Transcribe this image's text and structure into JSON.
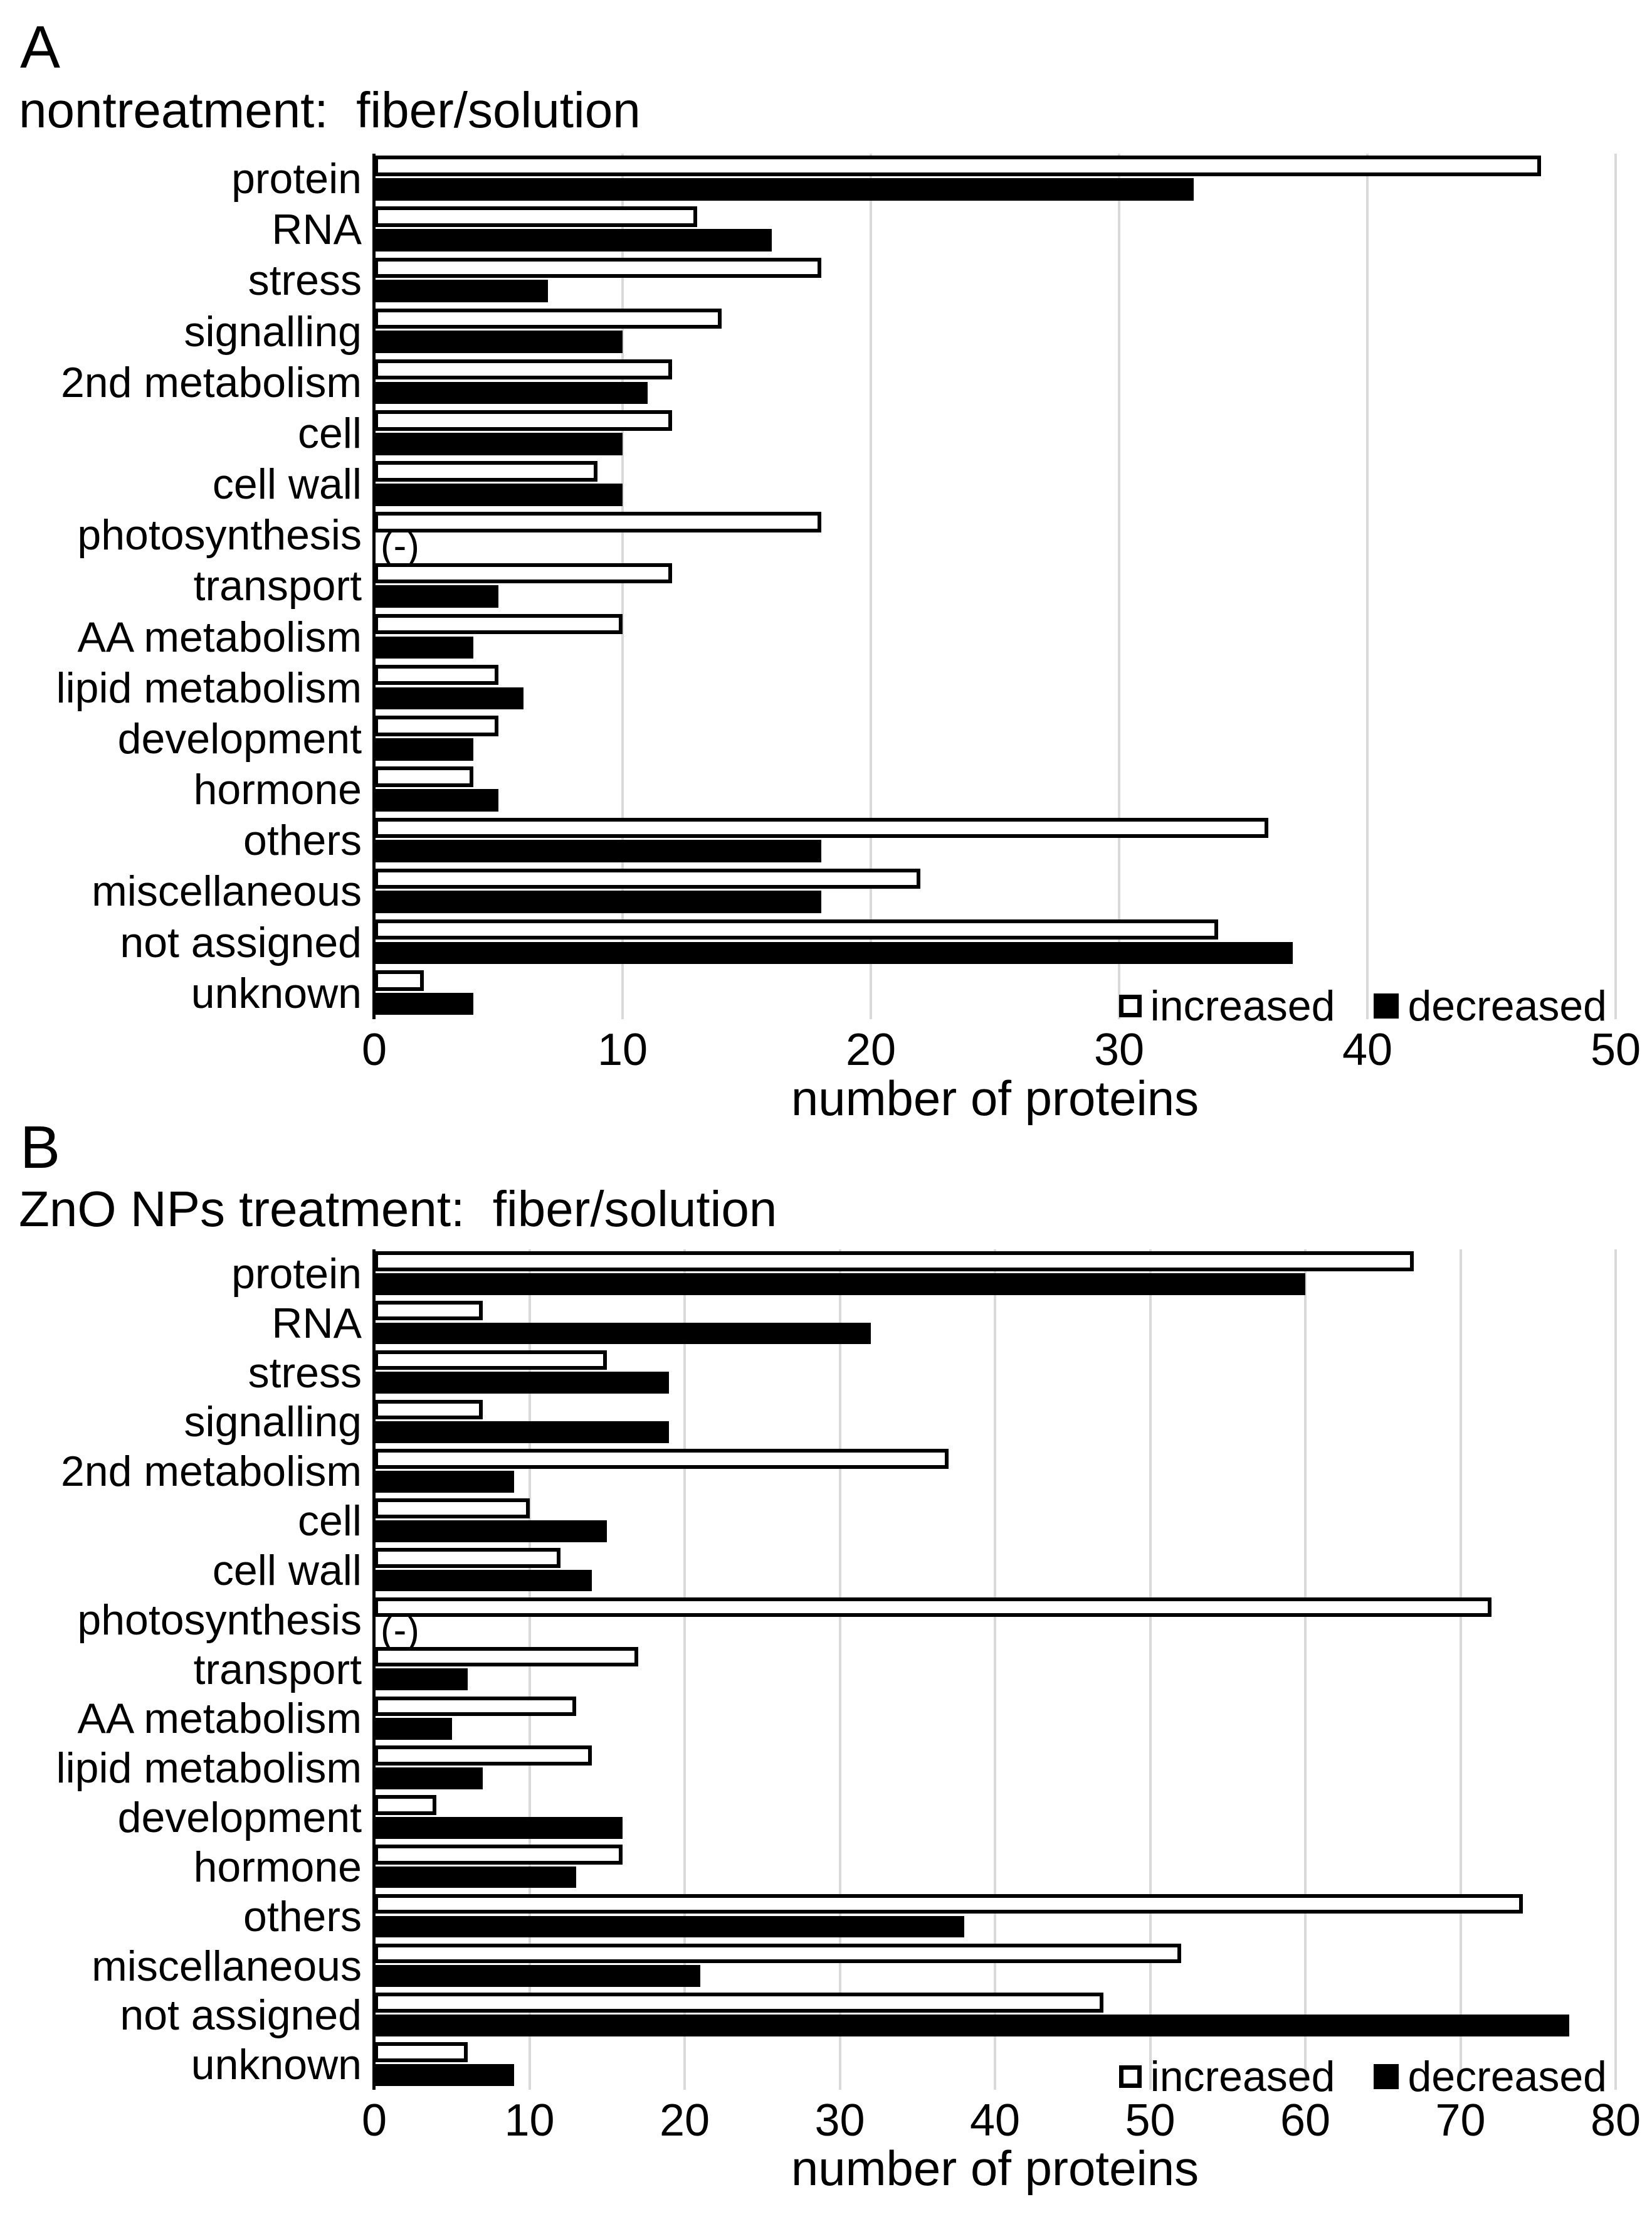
{
  "chart_data": [
    {
      "type": "bar",
      "orientation": "horizontal",
      "panel": "A",
      "title": "nontreatment:  fiber/solution",
      "xlabel": "number of proteins",
      "xlim": [
        0,
        50
      ],
      "xticks": [
        0,
        10,
        20,
        30,
        40,
        50
      ],
      "grid": true,
      "legend_position": "bottom-right-inside",
      "bar_colors": {
        "increased": "#ffffff",
        "decreased": "#000000"
      },
      "categories": [
        "protein",
        "RNA",
        "stress",
        "signalling",
        "2nd metabolism",
        "cell",
        "cell wall",
        "photosynthesis",
        "transport",
        "AA metabolism",
        "lipid metabolism",
        "development",
        "hormone",
        "others",
        "miscellaneous",
        "not assigned",
        "unknown"
      ],
      "series": [
        {
          "name": "increased",
          "values": [
            47,
            13,
            18,
            14,
            12,
            12,
            9,
            18,
            12,
            10,
            5,
            5,
            4,
            36,
            22,
            34,
            2
          ]
        },
        {
          "name": "decreased",
          "values": [
            33,
            16,
            7,
            10,
            11,
            10,
            10,
            0,
            5,
            4,
            6,
            4,
            5,
            18,
            18,
            37,
            4
          ]
        }
      ],
      "annotations": [
        {
          "category": "photosynthesis",
          "series": "decreased",
          "text": "(-)"
        }
      ]
    },
    {
      "type": "bar",
      "orientation": "horizontal",
      "panel": "B",
      "title": "ZnO NPs treatment:  fiber/solution",
      "xlabel": "number of proteins",
      "xlim": [
        0,
        80
      ],
      "xticks": [
        0,
        10,
        20,
        30,
        40,
        50,
        60,
        70,
        80
      ],
      "grid": true,
      "legend_position": "bottom-right-inside",
      "bar_colors": {
        "increased": "#ffffff",
        "decreased": "#000000"
      },
      "categories": [
        "protein",
        "RNA",
        "stress",
        "signalling",
        "2nd metabolism",
        "cell",
        "cell wall",
        "photosynthesis",
        "transport",
        "AA metabolism",
        "lipid metabolism",
        "development",
        "hormone",
        "others",
        "miscellaneous",
        "not assigned",
        "unknown"
      ],
      "series": [
        {
          "name": "increased",
          "values": [
            67,
            7,
            15,
            7,
            37,
            10,
            12,
            72,
            17,
            13,
            14,
            4,
            16,
            74,
            52,
            47,
            6
          ]
        },
        {
          "name": "decreased",
          "values": [
            60,
            32,
            19,
            19,
            9,
            15,
            14,
            0,
            6,
            5,
            7,
            16,
            13,
            38,
            21,
            77,
            9
          ]
        }
      ],
      "annotations": [
        {
          "category": "photosynthesis",
          "series": "decreased",
          "text": "(-)"
        }
      ]
    }
  ]
}
